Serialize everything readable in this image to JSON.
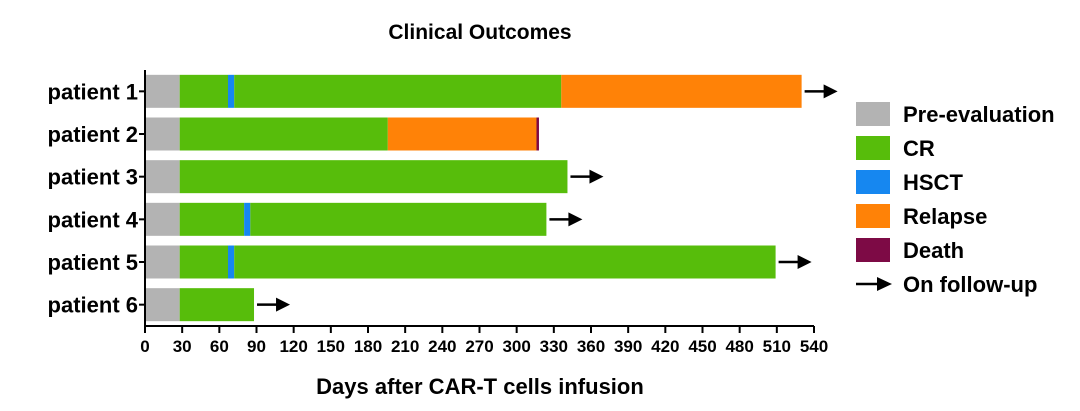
{
  "chart_data": {
    "type": "bar",
    "orientation": "horizontal-stacked",
    "title": "Clinical Outcomes",
    "xlabel": "Days after CAR-T cells infusion",
    "ylabel": "",
    "xlim": [
      0,
      540
    ],
    "x_ticks": [
      "0",
      "30",
      "60",
      "90",
      "120",
      "150",
      "180",
      "210",
      "240",
      "270",
      "300",
      "330",
      "360",
      "390",
      "420",
      "450",
      "480",
      "510",
      "540"
    ],
    "categories": [
      "patient 1",
      "patient 2",
      "patient 3",
      "patient 4",
      "patient 5",
      "patient 6"
    ],
    "legend": {
      "position": "right",
      "items": [
        {
          "key": "pre",
          "label": "Pre-evaluation",
          "color": "#b3b3b3"
        },
        {
          "key": "cr",
          "label": "CR",
          "color": "#57bd0b"
        },
        {
          "key": "hsct",
          "label": "HSCT",
          "color": "#1687f0"
        },
        {
          "key": "relapse",
          "label": "Relapse",
          "color": "#ff8207"
        },
        {
          "key": "death",
          "label": "Death",
          "color": "#7d0a45"
        },
        {
          "key": "followup",
          "label": "On follow-up",
          "symbol": "arrow",
          "color": "#000000"
        }
      ]
    },
    "patients": [
      {
        "name": "patient 1",
        "followup": true,
        "segments": [
          {
            "type": "pre",
            "start": 0,
            "end": 28
          },
          {
            "type": "cr",
            "start": 28,
            "end": 67
          },
          {
            "type": "hsct",
            "start": 67,
            "end": 72
          },
          {
            "type": "cr",
            "start": 72,
            "end": 336
          },
          {
            "type": "relapse",
            "start": 336,
            "end": 530
          }
        ]
      },
      {
        "name": "patient 2",
        "followup": false,
        "segments": [
          {
            "type": "pre",
            "start": 0,
            "end": 28
          },
          {
            "type": "cr",
            "start": 28,
            "end": 196
          },
          {
            "type": "relapse",
            "start": 196,
            "end": 316
          },
          {
            "type": "death",
            "start": 316,
            "end": 318
          }
        ]
      },
      {
        "name": "patient 3",
        "followup": true,
        "segments": [
          {
            "type": "pre",
            "start": 0,
            "end": 28
          },
          {
            "type": "cr",
            "start": 28,
            "end": 341
          }
        ]
      },
      {
        "name": "patient 4",
        "followup": true,
        "segments": [
          {
            "type": "pre",
            "start": 0,
            "end": 28
          },
          {
            "type": "cr",
            "start": 28,
            "end": 80
          },
          {
            "type": "hsct",
            "start": 80,
            "end": 85
          },
          {
            "type": "cr",
            "start": 85,
            "end": 324
          }
        ]
      },
      {
        "name": "patient 5",
        "followup": true,
        "segments": [
          {
            "type": "pre",
            "start": 0,
            "end": 28
          },
          {
            "type": "cr",
            "start": 28,
            "end": 67
          },
          {
            "type": "hsct",
            "start": 67,
            "end": 72
          },
          {
            "type": "cr",
            "start": 72,
            "end": 509
          }
        ]
      },
      {
        "name": "patient 6",
        "followup": true,
        "segments": [
          {
            "type": "pre",
            "start": 0,
            "end": 28
          },
          {
            "type": "cr",
            "start": 28,
            "end": 88
          }
        ]
      }
    ]
  }
}
